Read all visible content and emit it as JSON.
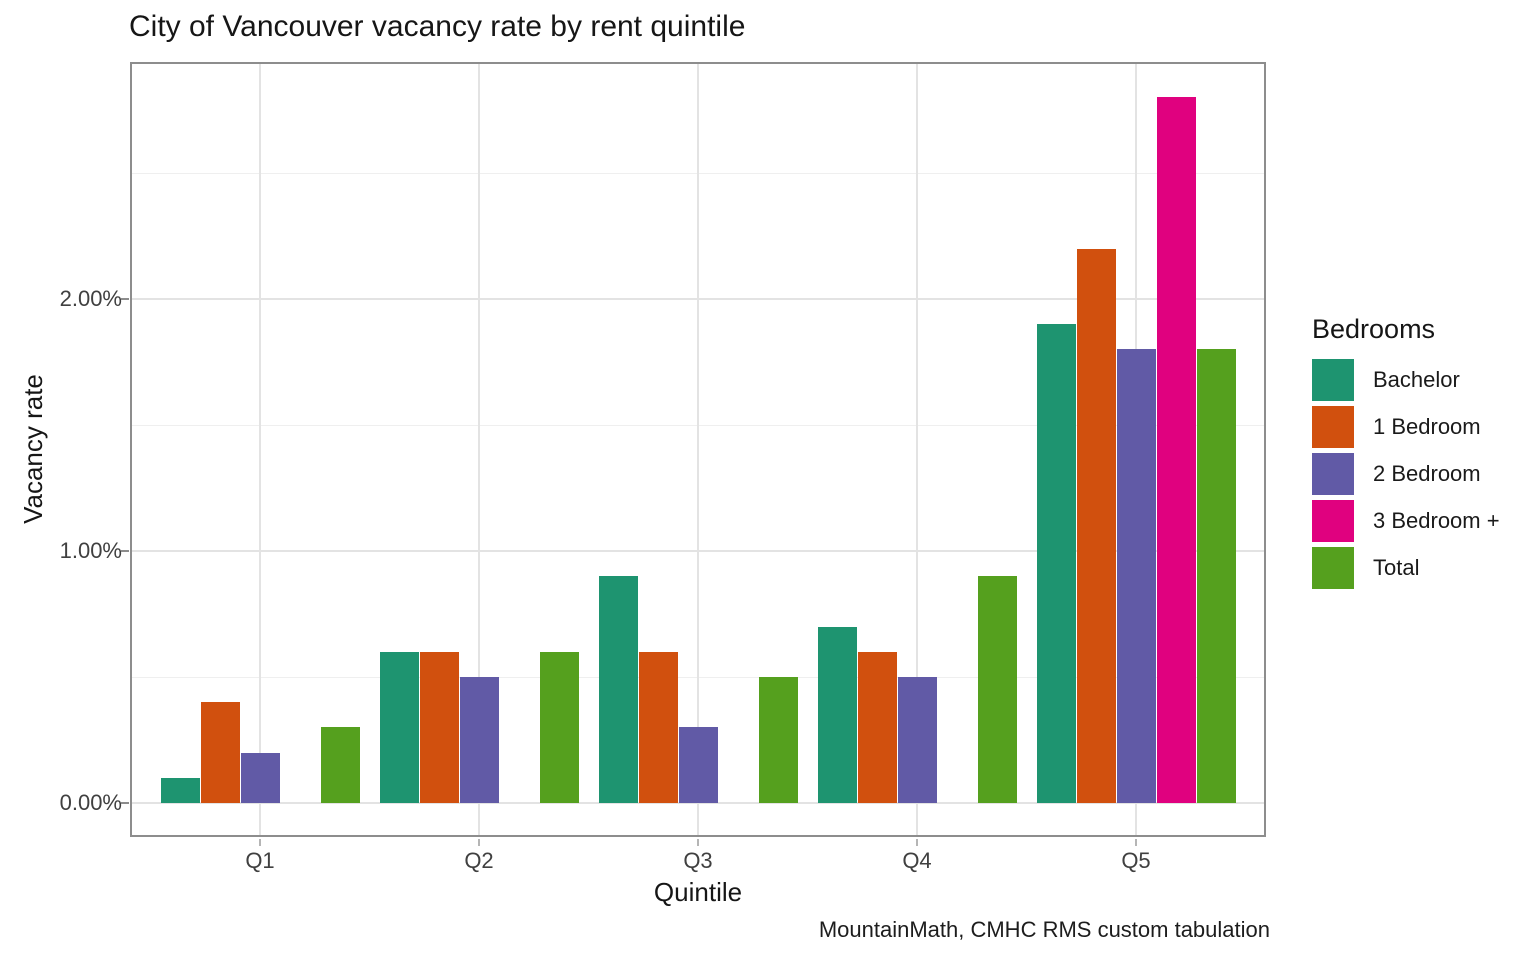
{
  "title": "City of Vancouver vacancy rate by rent quintile",
  "caption": "MountainMath, CMHC RMS custom tabulation",
  "chart_data": {
    "type": "bar",
    "title": "City of Vancouver vacancy rate by rent quintile",
    "xlabel": "Quintile",
    "ylabel": "Vacancy rate",
    "unit": "percent",
    "categories": [
      "Q1",
      "Q2",
      "Q3",
      "Q4",
      "Q5"
    ],
    "series": [
      {
        "name": "Bachelor",
        "color": "#1e9470",
        "values": [
          0.1,
          0.6,
          0.9,
          0.7,
          1.9
        ]
      },
      {
        "name": "1 Bedroom",
        "color": "#d1500e",
        "values": [
          0.4,
          0.6,
          0.6,
          0.6,
          2.2
        ]
      },
      {
        "name": "2 Bedroom",
        "color": "#615aa6",
        "values": [
          0.2,
          0.5,
          0.3,
          0.5,
          1.8
        ]
      },
      {
        "name": "3 Bedroom +",
        "color": "#e0017f",
        "values": [
          null,
          null,
          null,
          null,
          2.8
        ]
      },
      {
        "name": "Total",
        "color": "#55a01e",
        "values": [
          0.3,
          0.6,
          0.5,
          0.9,
          1.8
        ]
      }
    ],
    "y_ticks": [
      {
        "value": 0,
        "label": "0.00%"
      },
      {
        "value": 1,
        "label": "1.00%"
      },
      {
        "value": 2,
        "label": "2.00%"
      }
    ],
    "y_minor_ticks": [
      0.5,
      1.5,
      2.5
    ],
    "ylim": [
      -0.135,
      2.94
    ],
    "grid": true,
    "legend": {
      "title": "Bedrooms",
      "position": "right"
    },
    "colors": {
      "panel_background": "#ffffff",
      "panel_border": "#8d8d8d",
      "grid_major": "#e3e3e3",
      "grid_minor": "#efefef",
      "axis_text": "#404040",
      "title_text": "#161616"
    }
  }
}
